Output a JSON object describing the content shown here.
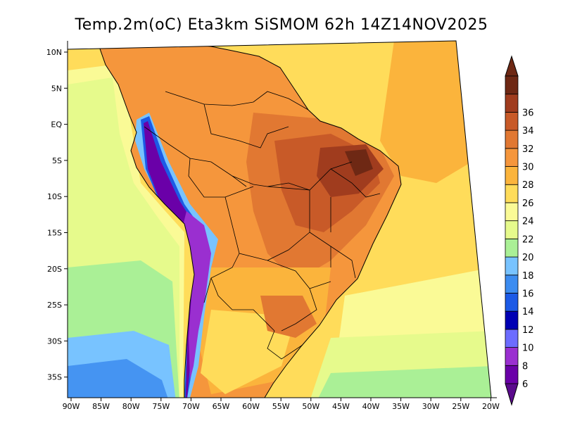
{
  "map": {
    "title": "Temp.2m(oC)  Eta3km  SiSMOM  62h  14Z14NOV2025",
    "variable": "Temp.2m",
    "units": "oC",
    "model": "Eta3km",
    "run": "SiSMOM",
    "forecast_hour": "62h",
    "valid_time": "14Z14NOV2025",
    "region": "South America",
    "lon_range": [
      -91,
      -20
    ],
    "lat_range": [
      -38,
      11
    ],
    "lon_ticks": [
      {
        "value": -90,
        "label": "90W"
      },
      {
        "value": -85,
        "label": "85W"
      },
      {
        "value": -80,
        "label": "80W"
      },
      {
        "value": -75,
        "label": "75W"
      },
      {
        "value": -70,
        "label": "70W"
      },
      {
        "value": -65,
        "label": "65W"
      },
      {
        "value": -60,
        "label": "60W"
      },
      {
        "value": -55,
        "label": "55W"
      },
      {
        "value": -50,
        "label": "50W"
      },
      {
        "value": -45,
        "label": "45W"
      },
      {
        "value": -40,
        "label": "40W"
      },
      {
        "value": -35,
        "label": "35W"
      },
      {
        "value": -30,
        "label": "30W"
      },
      {
        "value": -25,
        "label": "25W"
      },
      {
        "value": -20,
        "label": "20W"
      }
    ],
    "lat_ticks": [
      {
        "value": 10,
        "label": "10N"
      },
      {
        "value": 5,
        "label": "5N"
      },
      {
        "value": 0,
        "label": "EQ"
      },
      {
        "value": -5,
        "label": "5S"
      },
      {
        "value": -10,
        "label": "10S"
      },
      {
        "value": -15,
        "label": "15S"
      },
      {
        "value": -20,
        "label": "20S"
      },
      {
        "value": -25,
        "label": "25S"
      },
      {
        "value": -30,
        "label": "30S"
      },
      {
        "value": -35,
        "label": "35S"
      }
    ]
  },
  "colorbar": {
    "levels": [
      6,
      8,
      10,
      12,
      14,
      16,
      18,
      20,
      22,
      24,
      26,
      28,
      30,
      32,
      34,
      36
    ],
    "colors": [
      "#6a00a8",
      "#9a2fd0",
      "#6c6cff",
      "#0000b4",
      "#1c5ae6",
      "#3c8cf0",
      "#78c3ff",
      "#aaf096",
      "#e6fa8c",
      "#fafa96",
      "#ffdc5a",
      "#fbb43c",
      "#f5963c",
      "#e17832",
      "#c85a28",
      "#a03c1e",
      "#6e2814"
    ],
    "under_color": "#5a0a8c",
    "over_color": "#6e2814"
  }
}
